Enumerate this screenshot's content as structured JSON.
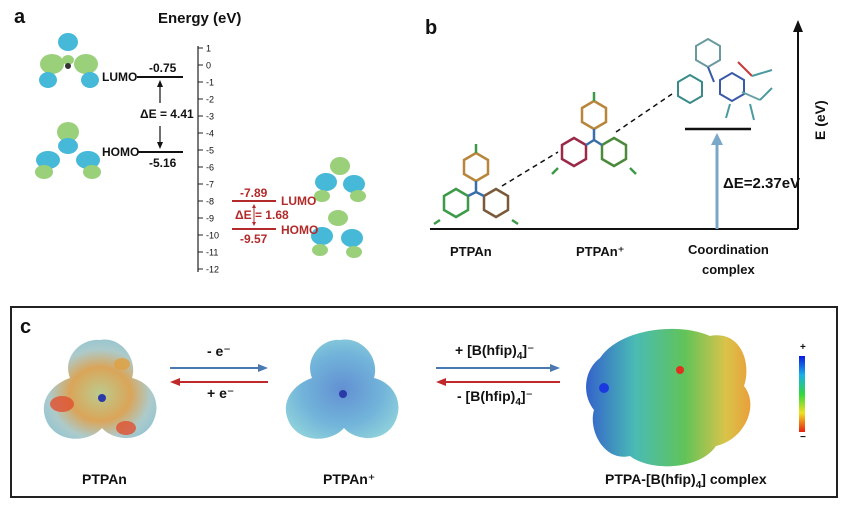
{
  "panel_a": {
    "label": "a",
    "title": "Energy (eV)",
    "neutral": {
      "lumo_label": "LUMO",
      "lumo_value": "-0.75",
      "homo_label": "HOMO",
      "homo_value": "-5.16",
      "gap": "ΔE = 4.41"
    },
    "cation": {
      "lumo_label": "LUMO",
      "lumo_value": "-7.89",
      "homo_label": "HOMO",
      "homo_value": "-9.57",
      "gap": "ΔE = 1.68"
    },
    "axis_ticks": [
      "1",
      "0",
      "-1",
      "-2",
      "-3",
      "-4",
      "-5",
      "-6",
      "-7",
      "-8",
      "-9",
      "-10",
      "-11",
      "-12"
    ]
  },
  "panel_b": {
    "label": "b",
    "y_axis_label": "E (eV)",
    "gap": "ΔE=2.37eV",
    "species": [
      "PTPAn",
      "PTPAn⁺",
      "Coordination",
      "complex"
    ]
  },
  "panel_c": {
    "label": "c",
    "arrow1_top": "- e⁻",
    "arrow1_bottom": "+ e⁻",
    "arrow2_top": "+ [B(hfip)",
    "arrow2_top_sub": "4",
    "arrow2_top_sup": "]⁻",
    "arrow2_bottom": "- [B(hfip)",
    "arrow2_bottom_sub": "4",
    "arrow2_bottom_sup": "]⁻",
    "names": [
      "PTPAn",
      "PTPAn⁺",
      "PTPA-[B(hfip)",
      "4",
      "] complex"
    ],
    "colorbar_top": "+",
    "colorbar_bottom": "−"
  },
  "colors": {
    "accent_red": "#b22a2a",
    "arrow_blue": "#4a78b0",
    "arrow_red": "#c0282a",
    "gap_arrow": "#7aa8c8",
    "orbital_green": "#9ad07a",
    "orbital_blue": "#46b8d8"
  }
}
